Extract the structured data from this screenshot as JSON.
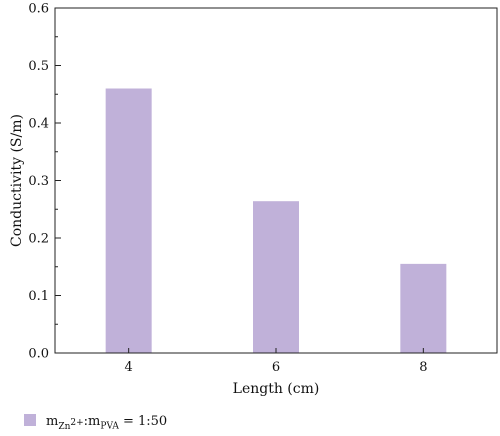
{
  "chart_data": {
    "type": "bar",
    "title": "",
    "xlabel": "Length (cm)",
    "ylabel": "Conductivity (S/m)",
    "categories": [
      "4",
      "6",
      "8"
    ],
    "series": [
      {
        "name": "m_Zn2+:m_PVA = 1:50",
        "values": [
          0.46,
          0.264,
          0.155
        ],
        "color": "#c0b1d9"
      }
    ],
    "ylim": [
      0,
      0.6
    ],
    "yticks": [
      "0.0",
      "0.1",
      "0.2",
      "0.3",
      "0.4",
      "0.5",
      "0.6"
    ],
    "grid": false,
    "legend_position": "bottom-left"
  },
  "legend": {
    "m": "m",
    "zn": "Zn",
    "zn_sup": "2+",
    "sep": ":m",
    "pva": "PVA",
    "ratio": " = 1:50"
  }
}
